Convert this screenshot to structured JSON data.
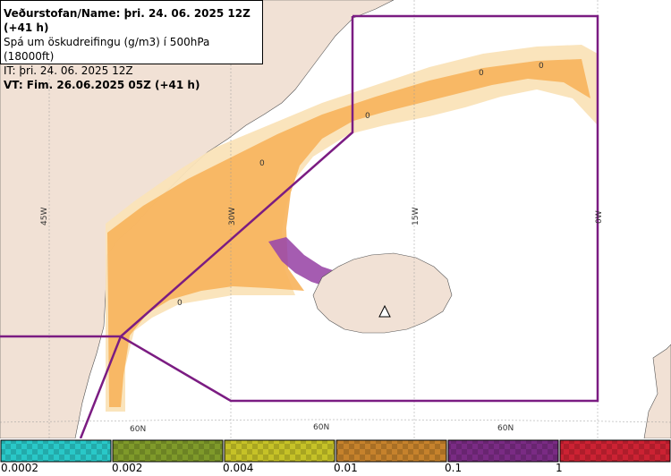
{
  "info": {
    "line1": "Veðurstofan/Name: þri. 24. 06. 2025 12Z (+41 h)",
    "line2": "Spá um öskudreifingu (g/m3) í 500hPa (18000ft)",
    "line3": "IT: þri. 24. 06. 2025 12Z",
    "line4": "VT: Fim. 26.06.2025 05Z (+41 h)"
  },
  "longitude_labels": [
    "45W",
    "30W",
    "15W",
    "0W"
  ],
  "latitude_labels": [
    "60N",
    "60N",
    "60N"
  ],
  "contour_labels": [
    "0",
    "0",
    "0",
    "0",
    "0"
  ],
  "legend": {
    "bins": [
      {
        "label": "0.0002",
        "color": "#29c8c8"
      },
      {
        "label": "0.002",
        "color": "#7f9a2a"
      },
      {
        "label": "0.004",
        "color": "#c6c227"
      },
      {
        "label": "0.01",
        "color": "#c6822c"
      },
      {
        "label": "0.1",
        "color": "#7a2b84"
      },
      {
        "label": "1",
        "color": "#cc2233"
      }
    ]
  },
  "colors": {
    "land": "#f1e1d5",
    "sea": "#ffffff",
    "ash_low": "#f9d39a",
    "ash_mid": "#f7b25b",
    "ash_high": "#9b4aa8",
    "fir_boundary": "#7b1c82"
  }
}
